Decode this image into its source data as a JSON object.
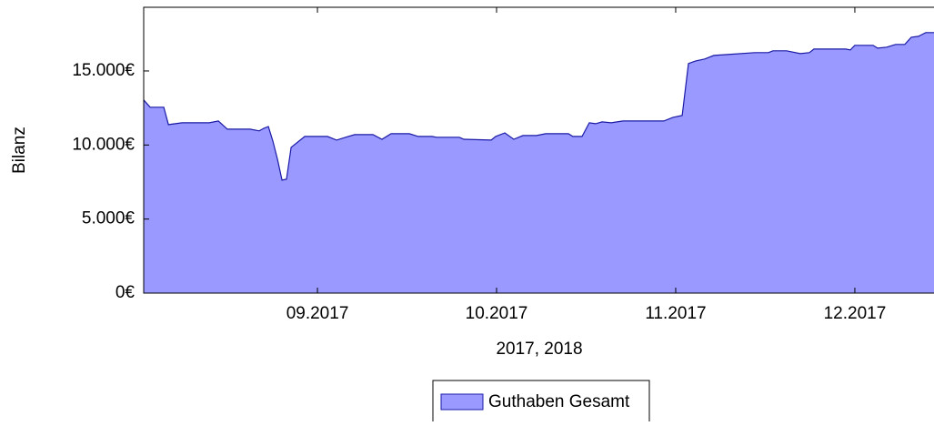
{
  "chart_data": {
    "type": "area",
    "xlabel": "2017, 2018",
    "ylabel": "Bilanz",
    "x": [
      8.03,
      8.066,
      8.142,
      8.168,
      8.244,
      8.396,
      8.447,
      8.497,
      8.624,
      8.675,
      8.701,
      8.726,
      8.751,
      8.777,
      8.802,
      8.827,
      8.853,
      8.929,
      9.056,
      9.107,
      9.157,
      9.208,
      9.31,
      9.36,
      9.411,
      9.513,
      9.563,
      9.64,
      9.665,
      9.792,
      9.817,
      9.97,
      9.995,
      10.046,
      10.096,
      10.147,
      10.223,
      10.274,
      10.401,
      10.426,
      10.477,
      10.518,
      10.553,
      10.589,
      10.64,
      10.706,
      10.934,
      10.985,
      11.036,
      11.071,
      11.112,
      11.162,
      11.213,
      11.289,
      11.442,
      11.518,
      11.543,
      11.619,
      11.695,
      11.746,
      11.772,
      11.949,
      11.975,
      12.0,
      12.102,
      12.127,
      12.178,
      12.228,
      12.279,
      12.315,
      12.355,
      12.396,
      12.442
    ],
    "series": [
      {
        "name": "Guthaben Gesamt",
        "color": "#9999ff",
        "line_color": "#1a1aa6",
        "values": [
          13040,
          12550,
          12550,
          11380,
          11500,
          11500,
          11620,
          11070,
          11070,
          10950,
          11130,
          11250,
          10270,
          9040,
          7630,
          7690,
          9840,
          10580,
          10580,
          10330,
          10520,
          10700,
          10700,
          10390,
          10760,
          10760,
          10580,
          10580,
          10520,
          10520,
          10390,
          10330,
          10580,
          10820,
          10390,
          10640,
          10640,
          10760,
          10760,
          10580,
          10580,
          11500,
          11440,
          11560,
          11500,
          11620,
          11620,
          11870,
          11990,
          15500,
          15680,
          15810,
          16050,
          16110,
          16240,
          16240,
          16360,
          16360,
          16170,
          16240,
          16480,
          16480,
          16420,
          16730,
          16730,
          16540,
          16610,
          16790,
          16790,
          17280,
          17340,
          17590,
          17590
        ]
      }
    ],
    "xlim": [
      8.03,
      12.442
    ],
    "xticks": [
      {
        "value": 9,
        "label": "09.2017"
      },
      {
        "value": 10,
        "label": "10.2017"
      },
      {
        "value": 11,
        "label": "11.2017"
      },
      {
        "value": 12,
        "label": "12.2017"
      }
    ],
    "ylim": [
      0,
      19300
    ],
    "yticks": [
      {
        "value": 0,
        "label": "0€"
      },
      {
        "value": 5000,
        "label": "5.000€"
      },
      {
        "value": 10000,
        "label": "10.000€"
      },
      {
        "value": 15000,
        "label": "15.000€"
      }
    ],
    "grid": false
  }
}
